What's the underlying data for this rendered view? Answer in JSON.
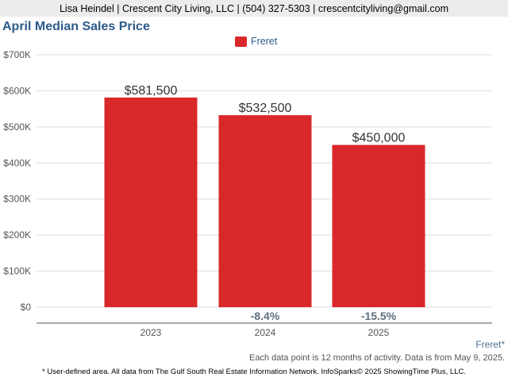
{
  "header": {
    "contact": "Lisa Heindel | Crescent City Living, LLC | (504) 327-5303 | crescentcityliving@gmail.com"
  },
  "area_tag": "Freret*",
  "footer": {
    "note": "Each data point is 12 months of activity. Data is from May 9, 2025.",
    "source": "* User-defined area. All data from The Gulf South Real Estate Information Network. InfoSparks© 2025 ShowingTime Plus, LLC."
  },
  "chart_data": {
    "type": "bar",
    "title": "April Median Sales Price",
    "categories": [
      "2023",
      "2024",
      "2025"
    ],
    "series": [
      {
        "name": "Freret",
        "values": [
          581500,
          532500,
          450000
        ]
      }
    ],
    "value_labels": [
      "$581,500",
      "$532,500",
      "$450,000"
    ],
    "change_labels": [
      "",
      "-8.4%",
      "-15.5%"
    ],
    "ylim": [
      0,
      700000
    ],
    "yticks": [
      0,
      100000,
      200000,
      300000,
      400000,
      500000,
      600000,
      700000
    ],
    "ytick_labels": [
      "$0",
      "$100K",
      "$200K",
      "$300K",
      "$400K",
      "$500K",
      "$600K",
      "$700K"
    ],
    "grid": true,
    "legend": "top-center",
    "colors": {
      "bar": "#d9282a",
      "title": "#2d5b8a"
    }
  }
}
